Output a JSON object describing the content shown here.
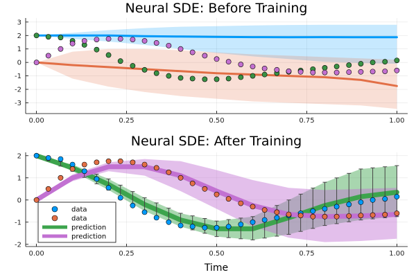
{
  "chart_data": [
    {
      "type": "line",
      "title": "Neural SDE: Before Training",
      "xlabel": "",
      "ylabel": "",
      "xlim": [
        0,
        1
      ],
      "ylim": [
        -3.8,
        3.3
      ],
      "xticks": [
        0,
        0.25,
        0.5,
        0.75,
        1.0
      ],
      "xtick_labels": [
        "0.00",
        "0.25",
        "0.50",
        "0.75",
        "1.00"
      ],
      "yticks": [
        -3,
        -2,
        -1,
        0,
        1,
        2,
        3
      ],
      "ytick_labels": [
        "-3",
        "-2",
        "-1",
        "0",
        "1",
        "2",
        "3"
      ],
      "grid": true,
      "legend": "none",
      "scatter_series": [
        {
          "color": "#3a9245",
          "x": [
            0,
            0.033,
            0.067,
            0.1,
            0.133,
            0.167,
            0.2,
            0.233,
            0.267,
            0.3,
            0.333,
            0.367,
            0.4,
            0.433,
            0.467,
            0.5,
            0.533,
            0.567,
            0.6,
            0.633,
            0.667,
            0.7,
            0.733,
            0.767,
            0.8,
            0.833,
            0.867,
            0.9,
            0.933,
            0.967,
            1.0
          ],
          "y": [
            2.0,
            1.9,
            1.85,
            1.6,
            1.3,
            0.95,
            0.55,
            0.1,
            -0.25,
            -0.55,
            -0.8,
            -1.0,
            -1.15,
            -1.2,
            -1.25,
            -1.25,
            -1.2,
            -1.1,
            -1.0,
            -0.9,
            -0.8,
            -0.7,
            -0.6,
            -0.5,
            -0.4,
            -0.3,
            -0.2,
            -0.1,
            0.0,
            0.05,
            0.15
          ]
        },
        {
          "color": "#c370d0",
          "x": [
            0,
            0.033,
            0.067,
            0.1,
            0.133,
            0.167,
            0.2,
            0.233,
            0.267,
            0.3,
            0.333,
            0.367,
            0.4,
            0.433,
            0.467,
            0.5,
            0.533,
            0.567,
            0.6,
            0.633,
            0.667,
            0.7,
            0.733,
            0.767,
            0.8,
            0.833,
            0.867,
            0.9,
            0.933,
            0.967,
            1.0
          ],
          "y": [
            0.0,
            0.5,
            1.0,
            1.4,
            1.6,
            1.7,
            1.75,
            1.75,
            1.7,
            1.6,
            1.45,
            1.25,
            1.0,
            0.75,
            0.5,
            0.25,
            0.05,
            -0.15,
            -0.3,
            -0.45,
            -0.55,
            -0.65,
            -0.7,
            -0.75,
            -0.75,
            -0.75,
            -0.72,
            -0.7,
            -0.68,
            -0.66,
            -0.6
          ]
        }
      ],
      "line_series": [
        {
          "color": "#009af9",
          "band_color": "#009af9",
          "x": [
            0,
            0.1,
            0.2,
            0.3,
            0.4,
            0.5,
            0.6,
            0.7,
            0.8,
            0.9,
            1.0
          ],
          "y": [
            2.0,
            2.0,
            2.0,
            1.95,
            1.92,
            1.9,
            1.88,
            1.87,
            1.88,
            1.87,
            1.87
          ],
          "lower": [
            2.0,
            1.75,
            1.55,
            1.3,
            1.0,
            0.7,
            0.45,
            0.25,
            0.05,
            -0.05,
            -0.1
          ],
          "upper": [
            2.0,
            2.2,
            2.4,
            2.55,
            2.65,
            2.7,
            2.75,
            2.78,
            2.8,
            2.8,
            2.8
          ]
        },
        {
          "color": "#e26f46",
          "band_color": "#e26f46",
          "x": [
            0,
            0.1,
            0.2,
            0.3,
            0.4,
            0.5,
            0.6,
            0.7,
            0.8,
            0.9,
            1.0
          ],
          "y": [
            0.0,
            -0.2,
            -0.35,
            -0.5,
            -0.65,
            -0.8,
            -0.9,
            -1.0,
            -1.1,
            -1.3,
            -1.75
          ],
          "lower": [
            0.0,
            -1.2,
            -1.8,
            -2.2,
            -2.5,
            -2.7,
            -2.9,
            -3.0,
            -3.1,
            -3.2,
            -3.45
          ],
          "upper": [
            0.0,
            0.8,
            1.0,
            1.0,
            0.9,
            0.75,
            0.6,
            0.5,
            0.4,
            0.3,
            0.2
          ]
        }
      ]
    },
    {
      "type": "line",
      "title": "Neural SDE: After Training",
      "xlabel": "Time",
      "ylabel": "",
      "xlim": [
        0,
        1
      ],
      "ylim": [
        -2.1,
        2.15
      ],
      "xticks": [
        0,
        0.25,
        0.5,
        0.75,
        1.0
      ],
      "xtick_labels": [
        "0.00",
        "0.25",
        "0.50",
        "0.75",
        "1.00"
      ],
      "yticks": [
        -2,
        -1,
        0,
        1,
        2
      ],
      "ytick_labels": [
        "-2",
        "-1",
        "0",
        "1",
        "2"
      ],
      "grid": true,
      "legend": "bottom-left",
      "legend_entries": [
        {
          "label": "data",
          "kind": "marker",
          "color": "#009af9"
        },
        {
          "label": "data",
          "kind": "marker",
          "color": "#e26f46"
        },
        {
          "label": "prediction",
          "kind": "line",
          "color": "#3da44d"
        },
        {
          "label": "prediction",
          "kind": "line",
          "color": "#c271d2"
        }
      ],
      "scatter_series": [
        {
          "name": "data",
          "color": "#009af9",
          "x": [
            0,
            0.033,
            0.067,
            0.1,
            0.133,
            0.167,
            0.2,
            0.233,
            0.267,
            0.3,
            0.333,
            0.367,
            0.4,
            0.433,
            0.467,
            0.5,
            0.533,
            0.567,
            0.6,
            0.633,
            0.667,
            0.7,
            0.733,
            0.767,
            0.8,
            0.833,
            0.867,
            0.9,
            0.933,
            0.967,
            1.0
          ],
          "y": [
            2.0,
            1.9,
            1.85,
            1.6,
            1.3,
            0.95,
            0.55,
            0.1,
            -0.25,
            -0.55,
            -0.8,
            -1.0,
            -1.15,
            -1.2,
            -1.25,
            -1.25,
            -1.2,
            -1.1,
            -1.0,
            -0.9,
            -0.8,
            -0.7,
            -0.6,
            -0.5,
            -0.4,
            -0.3,
            -0.2,
            -0.1,
            0.0,
            0.05,
            0.15
          ]
        },
        {
          "name": "data",
          "color": "#e26f46",
          "x": [
            0,
            0.033,
            0.067,
            0.1,
            0.133,
            0.167,
            0.2,
            0.233,
            0.267,
            0.3,
            0.333,
            0.367,
            0.4,
            0.433,
            0.467,
            0.5,
            0.533,
            0.567,
            0.6,
            0.633,
            0.667,
            0.7,
            0.733,
            0.767,
            0.8,
            0.833,
            0.867,
            0.9,
            0.933,
            0.967,
            1.0
          ],
          "y": [
            0.0,
            0.5,
            1.0,
            1.4,
            1.6,
            1.7,
            1.75,
            1.75,
            1.7,
            1.6,
            1.45,
            1.25,
            1.0,
            0.75,
            0.5,
            0.25,
            0.05,
            -0.15,
            -0.3,
            -0.45,
            -0.55,
            -0.65,
            -0.7,
            -0.75,
            -0.75,
            -0.75,
            -0.72,
            -0.7,
            -0.68,
            -0.66,
            -0.6
          ]
        }
      ],
      "line_series": [
        {
          "name": "prediction",
          "color": "#3da44d",
          "band_color": "#3da44d",
          "x": [
            0,
            0.1,
            0.2,
            0.3,
            0.4,
            0.5,
            0.6,
            0.7,
            0.8,
            0.9,
            1.0
          ],
          "y": [
            2.0,
            1.45,
            0.7,
            -0.2,
            -0.9,
            -1.3,
            -1.3,
            -0.8,
            -0.25,
            0.15,
            0.35
          ],
          "lower": [
            2.0,
            1.3,
            0.45,
            -0.5,
            -1.2,
            -1.65,
            -1.8,
            -1.55,
            -1.15,
            -0.9,
            -0.75
          ],
          "upper": [
            2.0,
            1.6,
            0.95,
            0.1,
            -0.6,
            -0.95,
            -0.75,
            0.0,
            0.8,
            1.4,
            1.55
          ],
          "errorbars": true
        },
        {
          "name": "prediction",
          "color": "#c271d2",
          "band_color": "#c271d2",
          "x": [
            0,
            0.1,
            0.2,
            0.3,
            0.4,
            0.5,
            0.6,
            0.7,
            0.8,
            0.9,
            1.0
          ],
          "y": [
            0.0,
            1.0,
            1.5,
            1.5,
            1.1,
            0.4,
            -0.25,
            -0.65,
            -0.75,
            -0.72,
            -0.65
          ],
          "lower": [
            0.0,
            0.85,
            1.3,
            1.1,
            0.4,
            -0.4,
            -1.2,
            -1.7,
            -1.9,
            -1.85,
            -1.75
          ],
          "upper": [
            0.0,
            1.15,
            1.7,
            1.85,
            1.75,
            1.35,
            0.9,
            0.55,
            0.45,
            0.5,
            0.55
          ],
          "errorbars": false
        }
      ]
    }
  ]
}
